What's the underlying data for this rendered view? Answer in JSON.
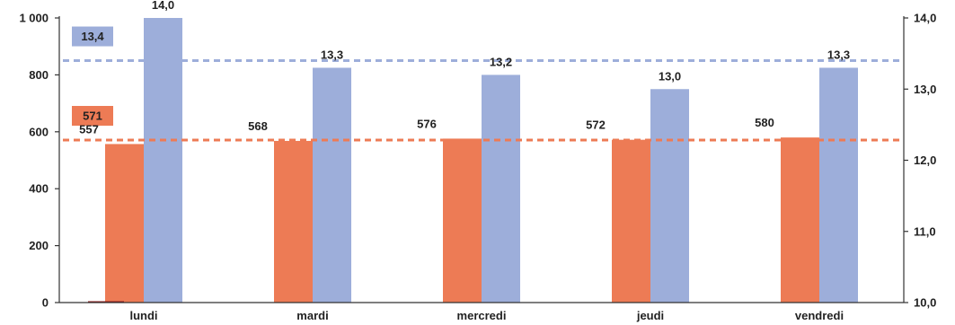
{
  "chart_data": {
    "type": "bar",
    "categories": [
      "lundi",
      "mardi",
      "mercredi",
      "jeudi",
      "vendredi"
    ],
    "series": [
      {
        "axis": "left",
        "color": "#ED7B55",
        "values": [
          557,
          568,
          576,
          572,
          580
        ],
        "labels": [
          "557",
          "568",
          "576",
          "572",
          "580"
        ]
      },
      {
        "axis": "right",
        "color": "#9DAEDA",
        "values": [
          14.0,
          13.3,
          13.2,
          13.0,
          13.3
        ],
        "labels": [
          "14,0",
          "13,3",
          "13,2",
          "13,0",
          "13,3"
        ]
      }
    ],
    "left_axis": {
      "ylim": [
        0,
        1000
      ],
      "ticks": [
        0,
        200,
        400,
        600,
        800,
        1000
      ],
      "tick_labels": [
        "0",
        "200",
        "400",
        "600",
        "800",
        "1 000"
      ]
    },
    "right_axis": {
      "ylim": [
        10.0,
        14.0
      ],
      "ticks": [
        10,
        11,
        12,
        13,
        14
      ],
      "tick_labels": [
        "10,0",
        "11,0",
        "12,0",
        "13,0",
        "14,0"
      ]
    },
    "averages": [
      {
        "axis": "left",
        "value": 571,
        "label": "571",
        "color": "#ED7B55",
        "style": "dashed"
      },
      {
        "axis": "right",
        "value": 13.4,
        "label": "13,4",
        "color": "#9DAEDA",
        "style": "dashed"
      }
    ],
    "grid": false,
    "legend": "none"
  }
}
